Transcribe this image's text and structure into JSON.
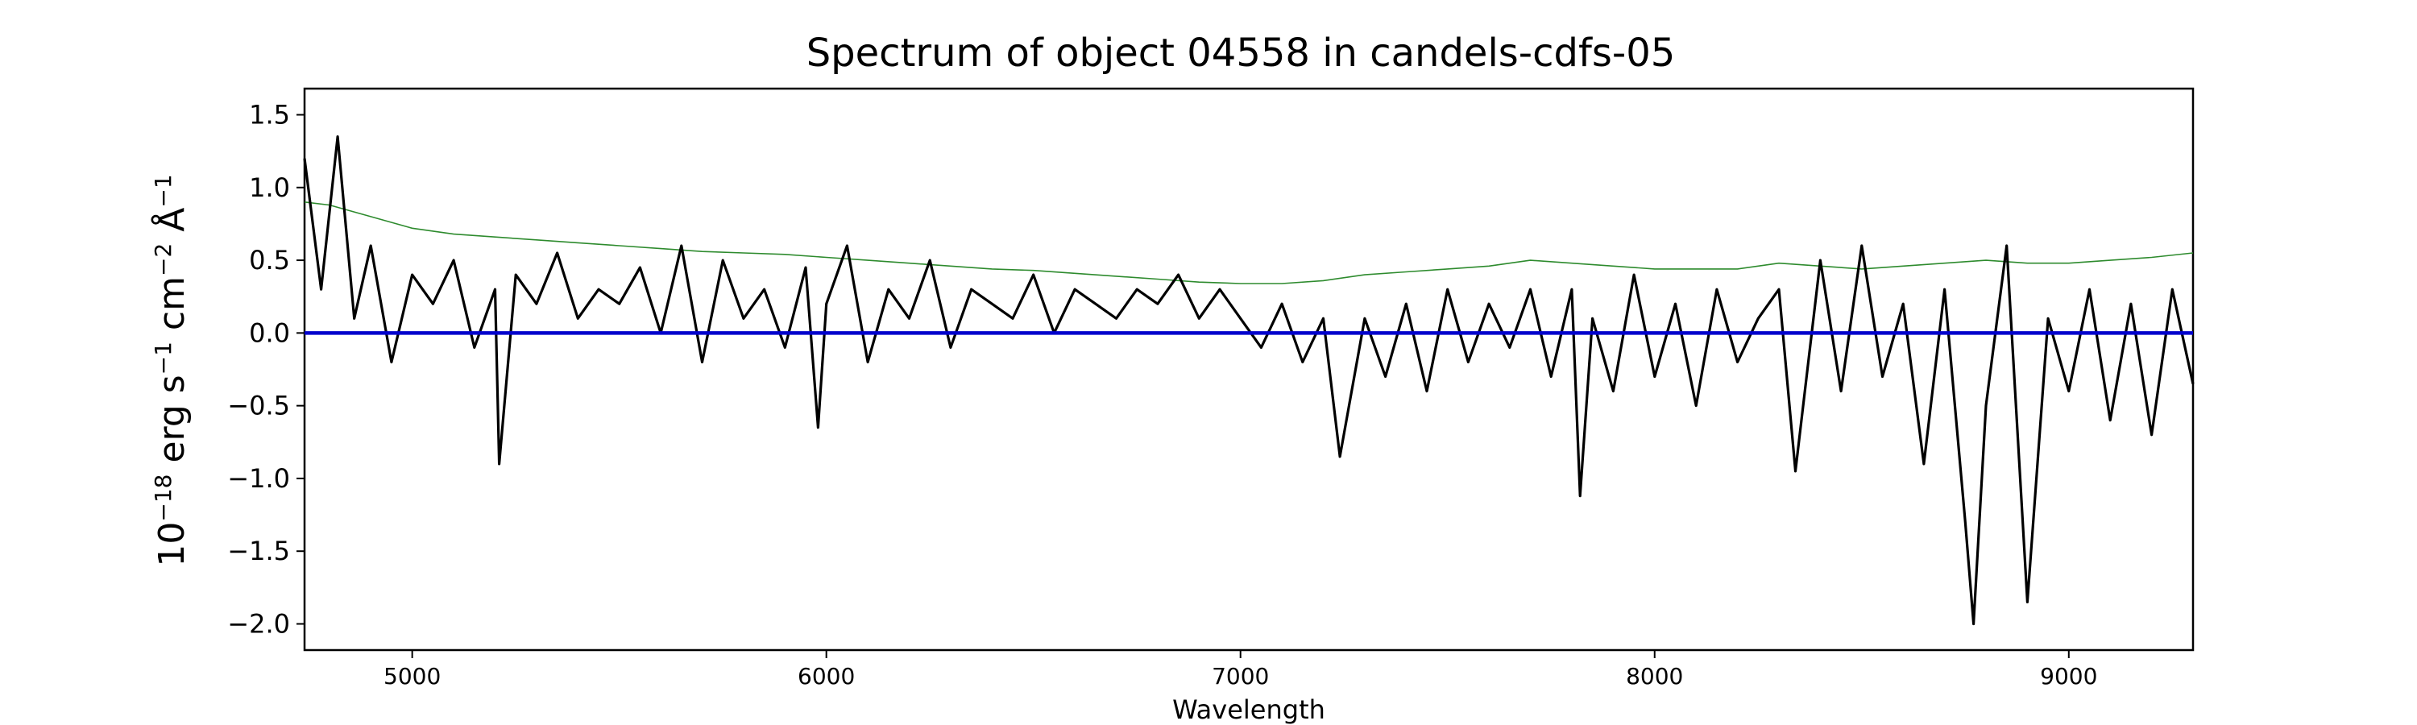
{
  "chart_data": {
    "type": "line",
    "title": "Spectrum of object 04558 in candels-cdfs-05",
    "xlabel": "Wavelength",
    "ylabel": {
      "prefix": "10",
      "exponent": "−18",
      "unit_1": " erg s",
      "exp_1": "−1",
      "unit_2": " cm",
      "exp_2": "−2",
      "unit_3": " Å",
      "exp_3": "−1"
    },
    "xlim": [
      4740,
      9300
    ],
    "ylim": [
      -2.18,
      1.68
    ],
    "x_ticks": [
      {
        "value": 5000,
        "label": "5000"
      },
      {
        "value": 6000,
        "label": "6000"
      },
      {
        "value": 7000,
        "label": "7000"
      },
      {
        "value": 8000,
        "label": "8000"
      },
      {
        "value": 9000,
        "label": "9000"
      }
    ],
    "y_ticks": [
      {
        "value": 1.5,
        "label": "1.5"
      },
      {
        "value": 1.0,
        "label": "1.0"
      },
      {
        "value": 0.5,
        "label": "0.5"
      },
      {
        "value": 0.0,
        "label": "0.0"
      },
      {
        "value": -0.5,
        "label": "−0.5"
      },
      {
        "value": -1.0,
        "label": "−1.0"
      },
      {
        "value": -1.5,
        "label": "−1.5"
      },
      {
        "value": -2.0,
        "label": "−2.0"
      }
    ],
    "grid": false,
    "colors": {
      "flux": "#000000",
      "error": "#2e8b2e",
      "zero_line": "#0000cc"
    },
    "series": [
      {
        "x": [
          4740,
          4800,
          4900,
          5000,
          5100,
          5200,
          5300,
          5400,
          5500,
          5600,
          5700,
          5800,
          5900,
          6000,
          6100,
          6200,
          6300,
          6400,
          6500,
          6600,
          6700,
          6800,
          6900,
          7000,
          7100,
          7200,
          7300,
          7400,
          7500,
          7600,
          7700,
          7800,
          7900,
          8000,
          8100,
          8200,
          8300,
          8400,
          8500,
          8600,
          8700,
          8800,
          8900,
          9000,
          9100,
          9200,
          9300
        ],
        "y": [
          0.9,
          0.88,
          0.8,
          0.72,
          0.68,
          0.66,
          0.64,
          0.62,
          0.6,
          0.58,
          0.56,
          0.55,
          0.54,
          0.52,
          0.5,
          0.48,
          0.46,
          0.44,
          0.43,
          0.41,
          0.39,
          0.37,
          0.35,
          0.34,
          0.34,
          0.36,
          0.4,
          0.42,
          0.44,
          0.46,
          0.5,
          0.48,
          0.46,
          0.44,
          0.44,
          0.44,
          0.48,
          0.46,
          0.44,
          0.46,
          0.48,
          0.5,
          0.48,
          0.48,
          0.5,
          0.52,
          0.55
        ]
      },
      {
        "x": [
          4740,
          4780,
          4820,
          4860,
          4900,
          4950,
          5000,
          5050,
          5100,
          5150,
          5200,
          5210,
          5250,
          5300,
          5350,
          5400,
          5450,
          5500,
          5550,
          5600,
          5650,
          5700,
          5750,
          5800,
          5850,
          5900,
          5950,
          5980,
          6000,
          6050,
          6100,
          6150,
          6200,
          6250,
          6300,
          6350,
          6400,
          6450,
          6500,
          6550,
          6600,
          6650,
          6700,
          6750,
          6800,
          6850,
          6900,
          6950,
          7000,
          7050,
          7100,
          7150,
          7200,
          7240,
          7300,
          7350,
          7400,
          7450,
          7500,
          7550,
          7600,
          7650,
          7700,
          7750,
          7800,
          7820,
          7850,
          7900,
          7950,
          8000,
          8050,
          8100,
          8150,
          8200,
          8250,
          8300,
          8340,
          8400,
          8450,
          8500,
          8550,
          8600,
          8650,
          8700,
          8750,
          8770,
          8800,
          8850,
          8900,
          8950,
          9000,
          9050,
          9100,
          9150,
          9200,
          9250,
          9300
        ],
        "y": [
          1.2,
          0.3,
          1.35,
          0.1,
          0.6,
          -0.2,
          0.4,
          0.2,
          0.5,
          -0.1,
          0.3,
          -0.9,
          0.4,
          0.2,
          0.55,
          0.1,
          0.3,
          0.2,
          0.45,
          0.0,
          0.6,
          -0.2,
          0.5,
          0.1,
          0.3,
          -0.1,
          0.45,
          -0.65,
          0.2,
          0.6,
          -0.2,
          0.3,
          0.1,
          0.5,
          -0.1,
          0.3,
          0.2,
          0.1,
          0.4,
          0.0,
          0.3,
          0.2,
          0.1,
          0.3,
          0.2,
          0.4,
          0.1,
          0.3,
          0.1,
          -0.1,
          0.2,
          -0.2,
          0.1,
          -0.85,
          0.1,
          -0.3,
          0.2,
          -0.4,
          0.3,
          -0.2,
          0.2,
          -0.1,
          0.3,
          -0.3,
          0.3,
          -1.12,
          0.1,
          -0.4,
          0.4,
          -0.3,
          0.2,
          -0.5,
          0.3,
          -0.2,
          0.1,
          0.3,
          -0.95,
          0.5,
          -0.4,
          0.6,
          -0.3,
          0.2,
          -0.9,
          0.3,
          -1.3,
          -2.0,
          -0.5,
          0.6,
          -1.85,
          0.1,
          -0.4,
          0.3,
          -0.6,
          0.2,
          -0.7,
          0.3,
          -0.35
        ]
      },
      {
        "x": [
          4740,
          9300
        ],
        "y": [
          0.0,
          0.0
        ]
      }
    ]
  }
}
